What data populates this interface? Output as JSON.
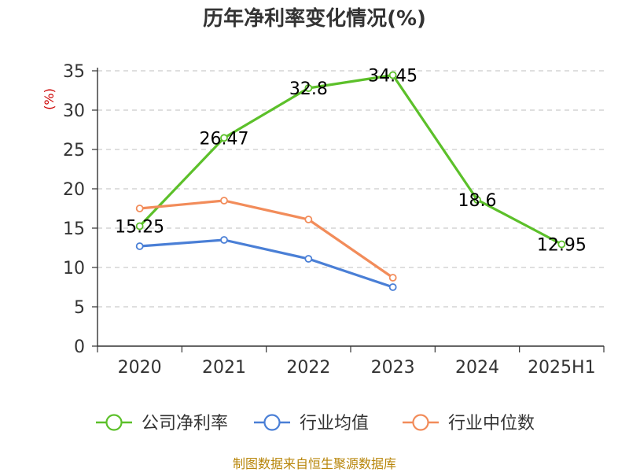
{
  "chart_data": {
    "type": "line",
    "title": "历年净利率变化情况(%)",
    "ylabel": "(%)",
    "xlabel": "",
    "categories": [
      "2020",
      "2021",
      "2022",
      "2023",
      "2024",
      "2025H1"
    ],
    "ylim": [
      0,
      35
    ],
    "yticks": [
      0,
      5,
      10,
      15,
      20,
      25,
      30,
      35
    ],
    "grid": true,
    "legend_position": "bottom",
    "series": [
      {
        "name": "公司净利率",
        "color": "#5cc02a",
        "values": [
          15.25,
          26.47,
          32.8,
          34.45,
          18.6,
          12.95
        ],
        "labels": [
          "15.25",
          "26.47",
          "32.8",
          "34.45",
          "18.6",
          "12.95"
        ]
      },
      {
        "name": "行业均值",
        "color": "#4a7fd6",
        "values": [
          12.7,
          13.5,
          11.1,
          7.5,
          null,
          null
        ]
      },
      {
        "name": "行业中位数",
        "color": "#f28c5a",
        "values": [
          17.5,
          18.5,
          16.1,
          8.7,
          null,
          null
        ]
      }
    ]
  },
  "source_text": "制图数据来自恒生聚源数据库"
}
